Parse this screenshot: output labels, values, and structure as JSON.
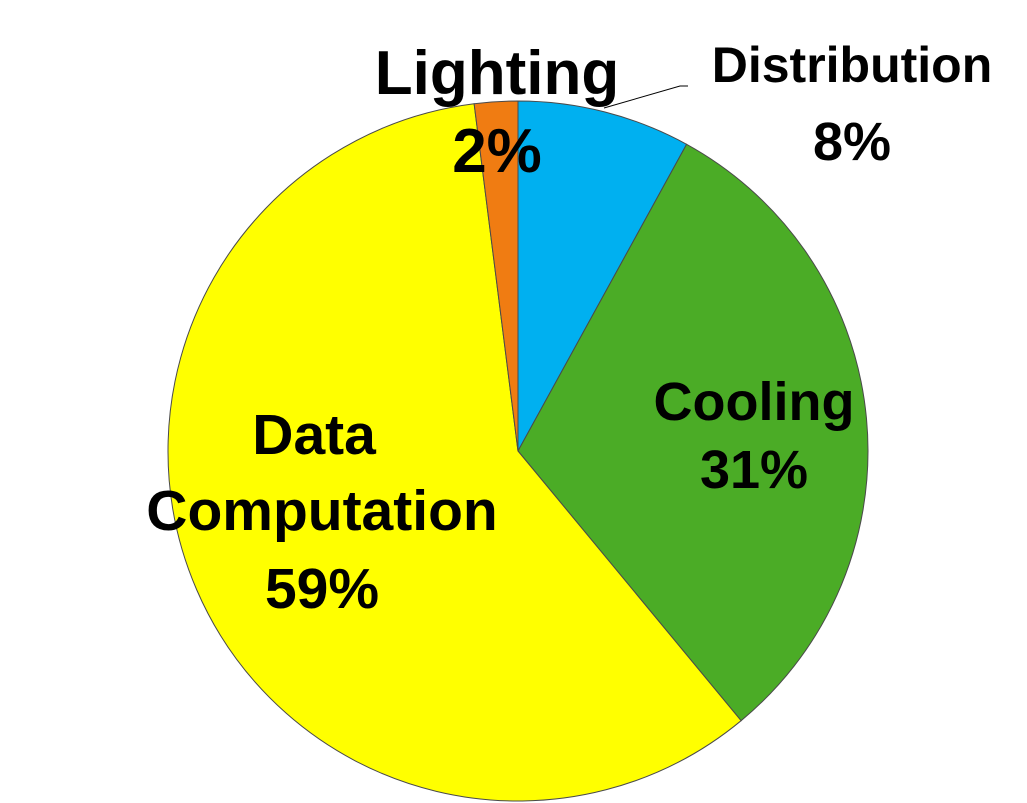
{
  "chart_data": {
    "type": "pie",
    "start_angle_deg": 0,
    "direction": "clockwise",
    "slices": [
      {
        "label": "Distribution",
        "value": 8,
        "value_label": "8%",
        "color": "#00b0f0"
      },
      {
        "label": "Cooling",
        "value": 31,
        "value_label": "31%",
        "color": "#4bac26"
      },
      {
        "label": "Data Computation",
        "value": 59,
        "value_label": "59%",
        "color": "#ffff00"
      },
      {
        "label": "Lighting",
        "value": 2,
        "value_label": "2%",
        "color": "#f07c12"
      }
    ],
    "title": "",
    "legend": "none"
  }
}
